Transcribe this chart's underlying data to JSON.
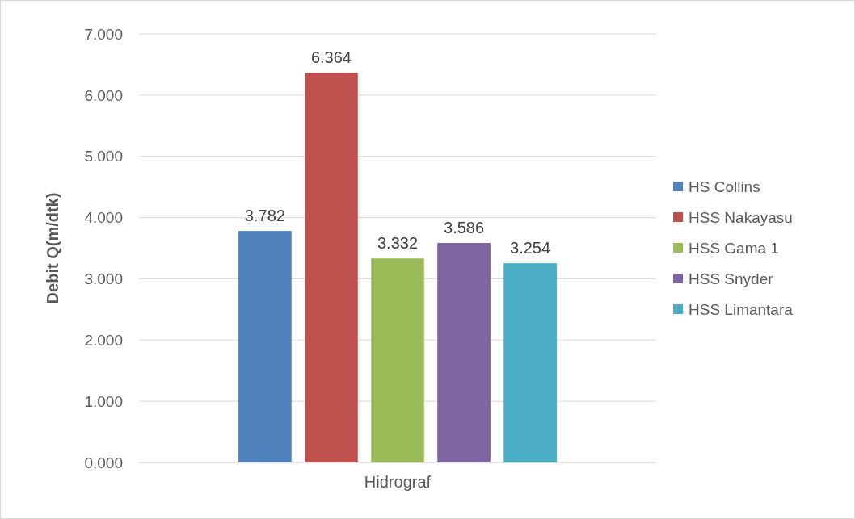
{
  "chart_data": {
    "type": "bar",
    "ylabel": "Debit Q(m/dtk)",
    "categories": [
      "Hidrograf"
    ],
    "series": [
      {
        "name": "HS Collins",
        "color": "#4f81bd",
        "values": [
          3.782
        ]
      },
      {
        "name": "HSS Nakayasu",
        "color": "#c0504d",
        "values": [
          6.364
        ]
      },
      {
        "name": "HSS Gama 1",
        "color": "#9bbb59",
        "values": [
          3.332
        ]
      },
      {
        "name": "HSS Snyder",
        "color": "#8064a2",
        "values": [
          3.586
        ]
      },
      {
        "name": "HSS Limantara",
        "color": "#4bacc6",
        "values": [
          3.254
        ]
      }
    ],
    "ylim": [
      0,
      7
    ],
    "yticks": [
      {
        "value": 0,
        "label": "0.000"
      },
      {
        "value": 1,
        "label": "1.000"
      },
      {
        "value": 2,
        "label": "2.000"
      },
      {
        "value": 3,
        "label": "3.000"
      },
      {
        "value": 4,
        "label": "4.000"
      },
      {
        "value": 5,
        "label": "5.000"
      },
      {
        "value": 6,
        "label": "6.000"
      },
      {
        "value": 7,
        "label": "7.000"
      }
    ],
    "grid": "y",
    "legend": "right",
    "data_labels": true
  }
}
